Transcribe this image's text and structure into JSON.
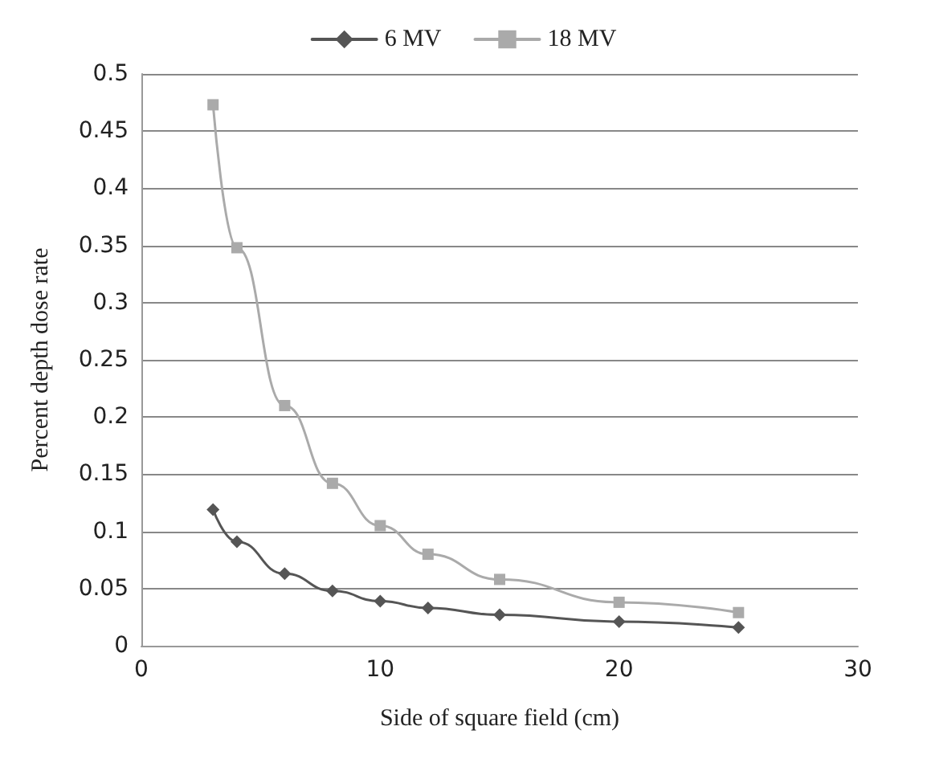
{
  "chart_data": {
    "type": "line",
    "xlabel": "Side of square field (cm)",
    "ylabel": "Percent depth dose rate",
    "x": [
      3,
      4,
      6,
      8,
      10,
      12,
      15,
      20,
      25
    ],
    "series": [
      {
        "name": "6 MV",
        "color": "#555555",
        "marker": "diamond",
        "values": [
          0.119,
          0.091,
          0.063,
          0.048,
          0.039,
          0.033,
          0.027,
          0.021,
          0.016
        ]
      },
      {
        "name": "18 MV",
        "color": "#aaaaaa",
        "marker": "square",
        "values": [
          0.473,
          0.348,
          0.21,
          0.142,
          0.105,
          0.08,
          0.058,
          0.038,
          0.029
        ]
      }
    ],
    "xlim": [
      0,
      30
    ],
    "xticks": [
      0,
      10,
      20,
      30
    ],
    "ylim": [
      0,
      0.5
    ],
    "yticks": [
      0,
      0.05,
      0.1,
      0.15,
      0.2,
      0.25,
      0.3,
      0.35,
      0.4,
      0.45,
      0.5
    ],
    "grid": "y",
    "legend": "top",
    "line_style": "solid"
  }
}
